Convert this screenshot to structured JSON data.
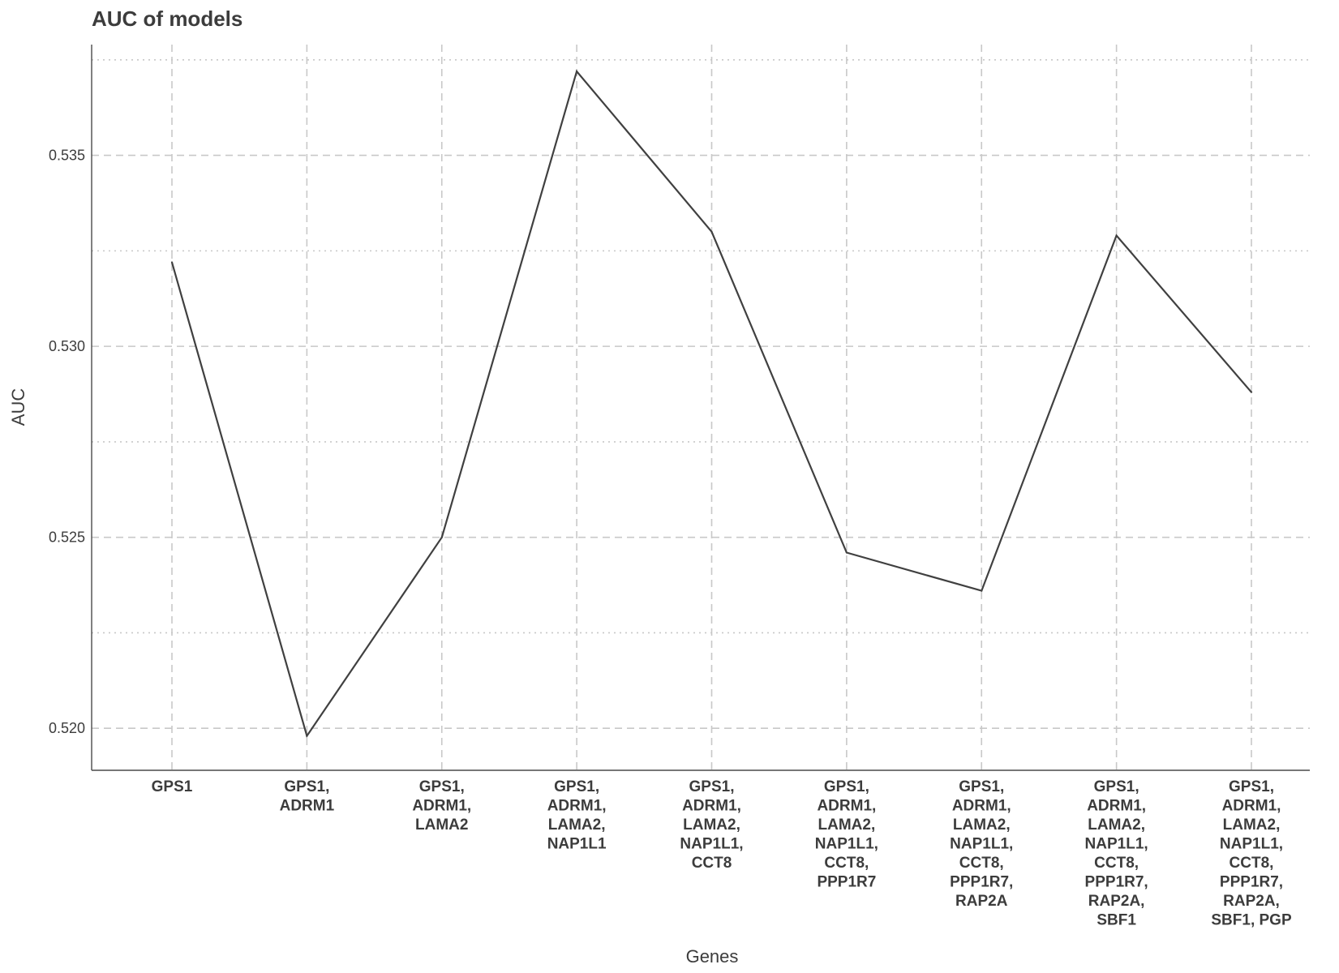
{
  "chart_data": {
    "type": "line",
    "title": "AUC of models",
    "xlabel": "Genes",
    "ylabel": "AUC",
    "categories": [
      "GPS1",
      "GPS1, ADRM1",
      "GPS1, ADRM1, LAMA2",
      "GPS1, ADRM1, LAMA2, NAP1L1",
      "GPS1, ADRM1, LAMA2, NAP1L1, CCT8",
      "GPS1, ADRM1, LAMA2, NAP1L1, CCT8, PPP1R7",
      "GPS1, ADRM1, LAMA2, NAP1L1, CCT8, PPP1R7, RAP2A",
      "GPS1, ADRM1, LAMA2, NAP1L1, CCT8, PPP1R7, RAP2A, SBF1",
      "GPS1, ADRM1, LAMA2, NAP1L1, CCT8, PPP1R7, RAP2A, SBF1, PGP"
    ],
    "tick_label_lines": [
      [
        "GPS1"
      ],
      [
        "GPS1,",
        "ADRM1"
      ],
      [
        "GPS1,",
        "ADRM1,",
        "LAMA2"
      ],
      [
        "GPS1,",
        "ADRM1,",
        "LAMA2,",
        "NAP1L1"
      ],
      [
        "GPS1,",
        "ADRM1,",
        "LAMA2,",
        "NAP1L1,",
        "CCT8"
      ],
      [
        "GPS1,",
        "ADRM1,",
        "LAMA2,",
        "NAP1L1,",
        "CCT8,",
        "PPP1R7"
      ],
      [
        "GPS1,",
        "ADRM1,",
        "LAMA2,",
        "NAP1L1,",
        "CCT8,",
        "PPP1R7,",
        "RAP2A"
      ],
      [
        "GPS1,",
        "ADRM1,",
        "LAMA2,",
        "NAP1L1,",
        "CCT8,",
        "PPP1R7,",
        "RAP2A,",
        "SBF1"
      ],
      [
        "GPS1,",
        "ADRM1,",
        "LAMA2,",
        "NAP1L1,",
        "CCT8,",
        "PPP1R7,",
        "RAP2A,",
        "SBF1, PGP"
      ]
    ],
    "values": [
      0.5322,
      0.5198,
      0.525,
      0.5372,
      0.533,
      0.5246,
      0.5236,
      0.5329,
      0.5288
    ],
    "ylim": [
      0.5189,
      0.5379
    ],
    "yticks": [
      0.52,
      0.525,
      0.53,
      0.535
    ],
    "ytick_labels": [
      "0.520",
      "0.525",
      "0.530",
      "0.535"
    ],
    "minor_yticks": [
      0.5225,
      0.5275,
      0.5325,
      0.5375
    ],
    "grid": true,
    "line_color": "#404040",
    "grid_color": "#c8c8c8",
    "axis_color": "#4a4a4a"
  }
}
